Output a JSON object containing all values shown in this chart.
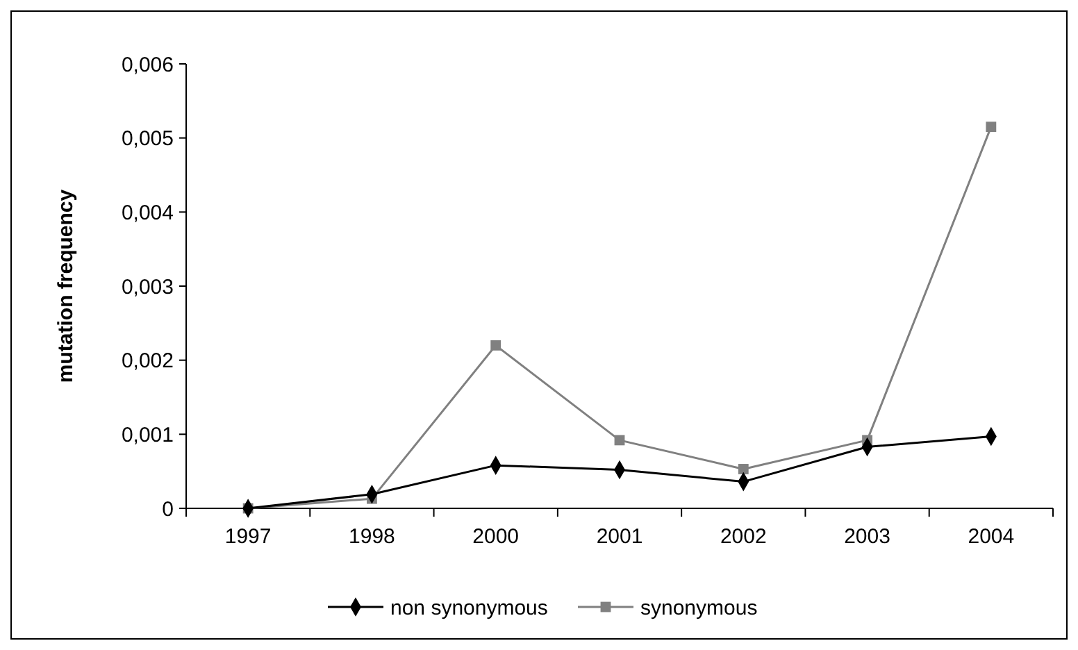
{
  "chart_data": {
    "type": "line",
    "ylabel": "mutation frequency",
    "categories": [
      "1997",
      "1998",
      "2000",
      "2001",
      "2002",
      "2003",
      "2004"
    ],
    "series": [
      {
        "name": "non synonymous",
        "color": "#000000",
        "marker": "diamond",
        "values": [
          0,
          0.00019,
          0.00058,
          0.00052,
          0.00036,
          0.00083,
          0.00097
        ]
      },
      {
        "name": "synonymous",
        "color": "#808080",
        "marker": "square",
        "values": [
          0,
          0.00013,
          0.0022,
          0.00092,
          0.00053,
          0.00092,
          0.00515
        ]
      }
    ],
    "ylim": [
      0,
      0.006
    ],
    "yticks": [
      0,
      {
        "value": 0.001,
        "label": "0,001"
      },
      {
        "value": 0.002,
        "label": "0,002"
      },
      {
        "value": 0.003,
        "label": "0,003"
      },
      {
        "value": 0.004,
        "label": "0,004"
      },
      {
        "value": 0.005,
        "label": "0,005"
      },
      {
        "value": 0.006,
        "label": "0,006"
      }
    ],
    "grid": false,
    "legend": "bottom",
    "line_style": "solid"
  }
}
